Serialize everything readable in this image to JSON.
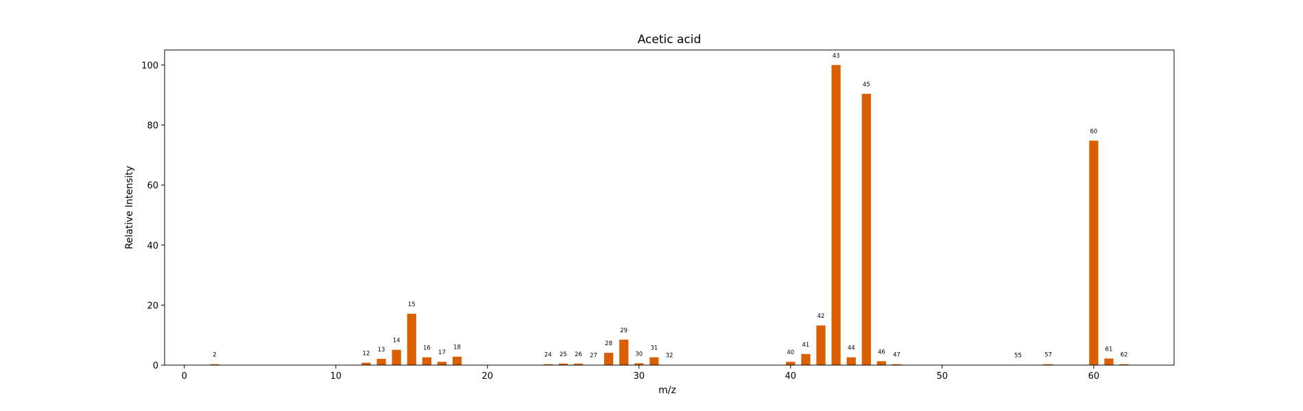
{
  "chart_data": {
    "type": "bar",
    "title": "Acetic acid",
    "xlabel": "m/z",
    "ylabel": "Relative Intensity",
    "xlim": [
      -1.3,
      65.3
    ],
    "ylim": [
      0,
      105
    ],
    "xticks": [
      0,
      10,
      20,
      30,
      40,
      50,
      60
    ],
    "yticks": [
      0,
      20,
      40,
      60,
      80,
      100
    ],
    "grid": false,
    "bar_color": "#d95f02",
    "series": [
      {
        "x": [
          2,
          12,
          13,
          14,
          15,
          16,
          17,
          18,
          24,
          25,
          26,
          27,
          28,
          29,
          30,
          31,
          32,
          40,
          41,
          42,
          43,
          44,
          45,
          46,
          47,
          55,
          57,
          60,
          61,
          62
        ],
        "values": [
          0.3,
          0.8,
          2.1,
          5.1,
          17.1,
          2.6,
          1.1,
          2.8,
          0.3,
          0.5,
          0.5,
          0.1,
          4.1,
          8.5,
          0.6,
          2.6,
          0.1,
          1.1,
          3.7,
          13.2,
          100.0,
          2.6,
          90.4,
          1.3,
          0.3,
          0.1,
          0.3,
          74.8,
          2.2,
          0.3
        ]
      }
    ]
  }
}
